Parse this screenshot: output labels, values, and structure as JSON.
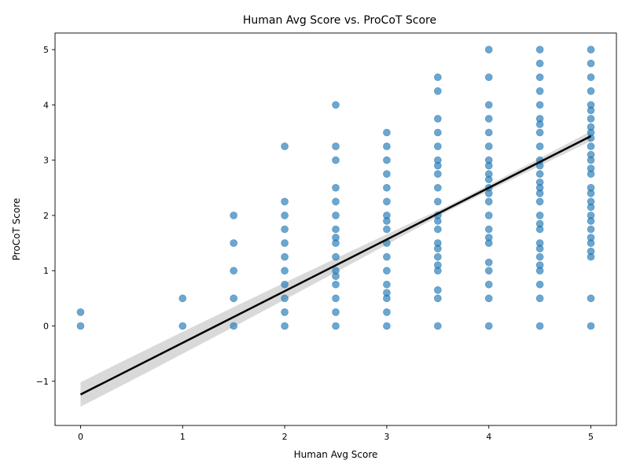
{
  "chart_data": {
    "type": "scatter",
    "title": "Human Avg Score vs. ProCoT Score",
    "xlabel": "Human Avg Score",
    "ylabel": "ProCoT Score",
    "xlim": [
      -0.25,
      5.25
    ],
    "ylim": [
      -1.8,
      5.3
    ],
    "xticks": [
      0,
      1,
      2,
      3,
      4,
      5
    ],
    "yticks": [
      -1,
      0,
      1,
      2,
      3,
      4,
      5
    ],
    "grid": false,
    "legend": "none",
    "point_color": "#1f77b4",
    "point_alpha": 0.65,
    "line_color": "#000000",
    "band_color": "#d9d9d9",
    "regression": {
      "intercept": -1.24,
      "slope": 0.935,
      "ci_at_x0": 0.22,
      "ci_at_xmean": 0.05,
      "ci_at_x5": 0.09
    },
    "points": [
      [
        0,
        0
      ],
      [
        0,
        0.25
      ],
      [
        1,
        0
      ],
      [
        1,
        0.5
      ],
      [
        1.5,
        0
      ],
      [
        1.5,
        0.5
      ],
      [
        1.5,
        1
      ],
      [
        1.5,
        1.5
      ],
      [
        1.5,
        2
      ],
      [
        2,
        0
      ],
      [
        2,
        0.25
      ],
      [
        2,
        0.5
      ],
      [
        2,
        0.75
      ],
      [
        2,
        1
      ],
      [
        2,
        1.25
      ],
      [
        2,
        1.5
      ],
      [
        2,
        1.75
      ],
      [
        2,
        2
      ],
      [
        2,
        2.25
      ],
      [
        2,
        3.25
      ],
      [
        2.5,
        0
      ],
      [
        2.5,
        0.25
      ],
      [
        2.5,
        0.5
      ],
      [
        2.5,
        0.75
      ],
      [
        2.5,
        0.9
      ],
      [
        2.5,
        1
      ],
      [
        2.5,
        1.25
      ],
      [
        2.5,
        1.5
      ],
      [
        2.5,
        1.6
      ],
      [
        2.5,
        1.75
      ],
      [
        2.5,
        2
      ],
      [
        2.5,
        2.25
      ],
      [
        2.5,
        2.5
      ],
      [
        2.5,
        3
      ],
      [
        2.5,
        3.25
      ],
      [
        2.5,
        4
      ],
      [
        3,
        0
      ],
      [
        3,
        0.25
      ],
      [
        3,
        0.5
      ],
      [
        3,
        0.6
      ],
      [
        3,
        0.75
      ],
      [
        3,
        1
      ],
      [
        3,
        1.25
      ],
      [
        3,
        1.5
      ],
      [
        3,
        1.75
      ],
      [
        3,
        1.9
      ],
      [
        3,
        2
      ],
      [
        3,
        2.25
      ],
      [
        3,
        2.5
      ],
      [
        3,
        2.75
      ],
      [
        3,
        3
      ],
      [
        3,
        3.25
      ],
      [
        3,
        3.5
      ],
      [
        3.5,
        0
      ],
      [
        3.5,
        0.5
      ],
      [
        3.5,
        0.65
      ],
      [
        3.5,
        1
      ],
      [
        3.5,
        1.1
      ],
      [
        3.5,
        1.25
      ],
      [
        3.5,
        1.4
      ],
      [
        3.5,
        1.5
      ],
      [
        3.5,
        1.75
      ],
      [
        3.5,
        1.9
      ],
      [
        3.5,
        2
      ],
      [
        3.5,
        2.25
      ],
      [
        3.5,
        2.5
      ],
      [
        3.5,
        2.75
      ],
      [
        3.5,
        2.9
      ],
      [
        3.5,
        3
      ],
      [
        3.5,
        3.25
      ],
      [
        3.5,
        3.5
      ],
      [
        3.5,
        3.75
      ],
      [
        3.5,
        4.25
      ],
      [
        3.5,
        4.5
      ],
      [
        4,
        0
      ],
      [
        4,
        0.5
      ],
      [
        4,
        0.75
      ],
      [
        4,
        1
      ],
      [
        4,
        1.15
      ],
      [
        4,
        1.5
      ],
      [
        4,
        1.6
      ],
      [
        4,
        1.75
      ],
      [
        4,
        2
      ],
      [
        4,
        2.25
      ],
      [
        4,
        2.4
      ],
      [
        4,
        2.5
      ],
      [
        4,
        2.65
      ],
      [
        4,
        2.75
      ],
      [
        4,
        2.9
      ],
      [
        4,
        3
      ],
      [
        4,
        3.25
      ],
      [
        4,
        3.5
      ],
      [
        4,
        3.75
      ],
      [
        4,
        4
      ],
      [
        4,
        4.5
      ],
      [
        4,
        5
      ],
      [
        4.5,
        0
      ],
      [
        4.5,
        0.5
      ],
      [
        4.5,
        0.75
      ],
      [
        4.5,
        1
      ],
      [
        4.5,
        1.1
      ],
      [
        4.5,
        1.25
      ],
      [
        4.5,
        1.4
      ],
      [
        4.5,
        1.5
      ],
      [
        4.5,
        1.75
      ],
      [
        4.5,
        1.85
      ],
      [
        4.5,
        2
      ],
      [
        4.5,
        2.25
      ],
      [
        4.5,
        2.4
      ],
      [
        4.5,
        2.5
      ],
      [
        4.5,
        2.6
      ],
      [
        4.5,
        2.75
      ],
      [
        4.5,
        2.9
      ],
      [
        4.5,
        3
      ],
      [
        4.5,
        3.25
      ],
      [
        4.5,
        3.5
      ],
      [
        4.5,
        3.65
      ],
      [
        4.5,
        3.75
      ],
      [
        4.5,
        4
      ],
      [
        4.5,
        4.25
      ],
      [
        4.5,
        4.5
      ],
      [
        4.5,
        4.75
      ],
      [
        4.5,
        5
      ],
      [
        5,
        0
      ],
      [
        5,
        0.5
      ],
      [
        5,
        1.25
      ],
      [
        5,
        1.35
      ],
      [
        5,
        1.5
      ],
      [
        5,
        1.6
      ],
      [
        5,
        1.75
      ],
      [
        5,
        1.9
      ],
      [
        5,
        2
      ],
      [
        5,
        2.15
      ],
      [
        5,
        2.25
      ],
      [
        5,
        2.4
      ],
      [
        5,
        2.5
      ],
      [
        5,
        2.75
      ],
      [
        5,
        2.85
      ],
      [
        5,
        3
      ],
      [
        5,
        3.1
      ],
      [
        5,
        3.25
      ],
      [
        5,
        3.4
      ],
      [
        5,
        3.5
      ],
      [
        5,
        3.6
      ],
      [
        5,
        3.75
      ],
      [
        5,
        3.9
      ],
      [
        5,
        4
      ],
      [
        5,
        4.25
      ],
      [
        5,
        4.5
      ],
      [
        5,
        4.75
      ],
      [
        5,
        5
      ]
    ]
  }
}
